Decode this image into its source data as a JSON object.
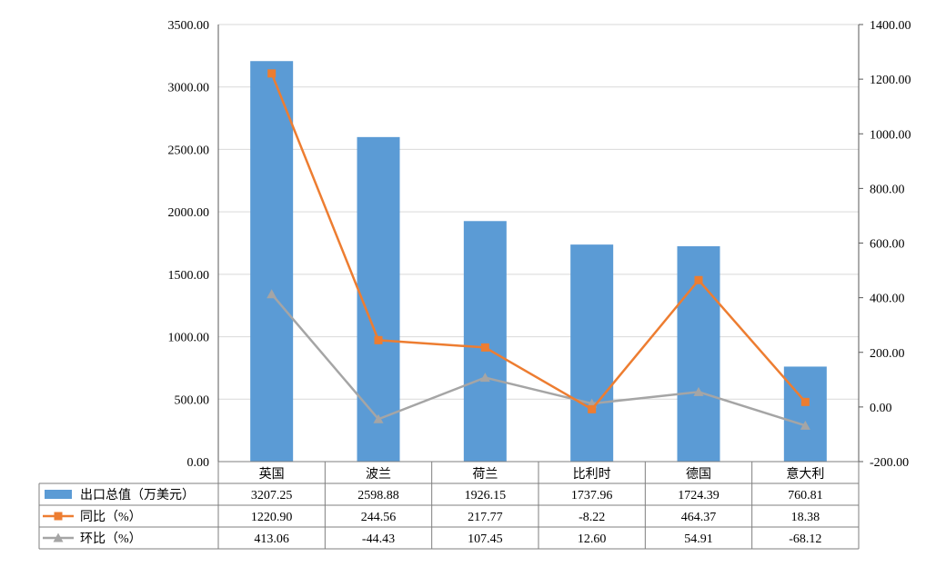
{
  "chart_data": {
    "type": "bar",
    "categories": [
      "英国",
      "波兰",
      "荷兰",
      "比利时",
      "德国",
      "意大利"
    ],
    "left_axis": {
      "min": 0,
      "max": 3500,
      "step": 500,
      "ticks": [
        "0.00",
        "500.00",
        "1000.00",
        "1500.00",
        "2000.00",
        "2500.00",
        "3000.00",
        "3500.00"
      ]
    },
    "right_axis": {
      "min": -200,
      "max": 1400,
      "step": 200,
      "ticks": [
        "-200.00",
        "0.00",
        "200.00",
        "400.00",
        "600.00",
        "800.00",
        "1000.00",
        "1200.00",
        "1400.00"
      ]
    },
    "grid": true,
    "legend_placement": "data-table",
    "series": [
      {
        "name": "出口总值（万美元）",
        "type": "bar",
        "axis": "left",
        "color": "#5B9BD5",
        "values": [
          3207.25,
          2598.88,
          1926.15,
          1737.96,
          1724.39,
          760.81
        ],
        "labels": [
          "3207.25",
          "2598.88",
          "1926.15",
          "1737.96",
          "1724.39",
          "760.81"
        ]
      },
      {
        "name": "同比（%）",
        "type": "line",
        "axis": "right",
        "marker": "square",
        "color": "#ED7D31",
        "values": [
          1220.9,
          244.56,
          217.77,
          -8.22,
          464.37,
          18.38
        ],
        "labels": [
          "1220.90",
          "244.56",
          "217.77",
          "-8.22",
          "464.37",
          "18.38"
        ]
      },
      {
        "name": "环比（%）",
        "type": "line",
        "axis": "right",
        "marker": "triangle",
        "color": "#A5A5A5",
        "values": [
          413.06,
          -44.43,
          107.45,
          12.6,
          54.91,
          -68.12
        ],
        "labels": [
          "413.06",
          "-44.43",
          "107.45",
          "12.60",
          "54.91",
          "-68.12"
        ]
      }
    ]
  }
}
